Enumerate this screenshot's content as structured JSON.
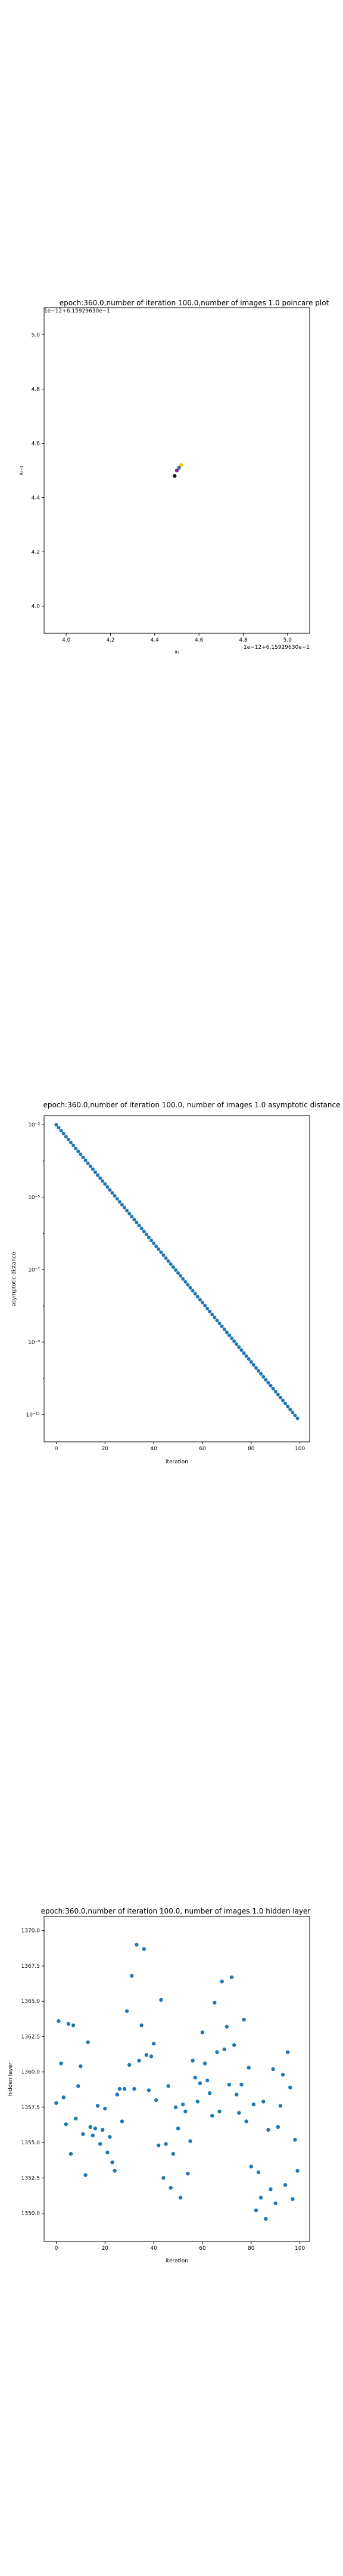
{
  "chart_data": [
    {
      "type": "scatter",
      "title": "epoch:360.0,number of iteration 100.0,number of images 1.0 poincare plot",
      "xlabel": "xₜ",
      "ylabel": "xₜ₊₁",
      "offset_label": "1e−12+6.15929630e−1",
      "offset_label_top": "1e−12+6.15929630e−1",
      "xlim": [
        3.9,
        5.1
      ],
      "ylim": [
        3.9,
        5.1
      ],
      "xticks": [
        "4.0",
        "4.2",
        "4.4",
        "4.6",
        "4.8",
        "5.0"
      ],
      "yticks": [
        "4.0",
        "4.2",
        "4.4",
        "4.6",
        "4.8",
        "5.0"
      ],
      "grid": false,
      "points": [
        {
          "x": 4.49,
          "y": 4.48,
          "color": "#1a1a1a"
        },
        {
          "x": 4.5,
          "y": 4.5,
          "color": "#7b2a8c"
        },
        {
          "x": 4.51,
          "y": 4.51,
          "color": "#2a6fa8"
        },
        {
          "x": 4.52,
          "y": 4.52,
          "color": "#f2c80f"
        }
      ]
    },
    {
      "type": "scatter",
      "title": "epoch:360.0,number of iteration 100.0, number of images 1.0 asymptotic distance",
      "xlabel": "iteration",
      "ylabel": "asymptotic distance",
      "yscale": "log",
      "xlim": [
        -5,
        104
      ],
      "ylim_log10": [
        -11.75,
        -2.75
      ],
      "xticks": [
        "0",
        "20",
        "40",
        "60",
        "80",
        "100"
      ],
      "yticks": [
        "10⁻³",
        "10⁻⁵",
        "10⁻⁷",
        "10⁻⁹",
        "10⁻¹¹"
      ],
      "y_start_log10": -3.0,
      "y_end_log10": -11.1,
      "n_points": 100,
      "color": "#1f77b4",
      "grid": false
    },
    {
      "type": "scatter",
      "title": "epoch:360.0,number of iteration 100.0, number of images 1.0 hidden layer",
      "xlabel": "iteration",
      "ylabel": "hidden layer",
      "xlim": [
        -5,
        104
      ],
      "ylim": [
        1348,
        1371
      ],
      "xticks": [
        "0",
        "20",
        "40",
        "60",
        "80",
        "100"
      ],
      "yticks": [
        "1350.0",
        "1352.5",
        "1355.0",
        "1357.5",
        "1360.0",
        "1362.5",
        "1365.0",
        "1367.5",
        "1370.0"
      ],
      "color": "#1f77b4",
      "grid": false,
      "values": [
        1357.8,
        1363.6,
        1360.6,
        1358.2,
        1356.3,
        1363.4,
        1354.2,
        1363.3,
        1356.7,
        1359.0,
        1360.4,
        1355.6,
        1352.7,
        1362.1,
        1356.1,
        1355.5,
        1356.0,
        1357.6,
        1354.9,
        1355.9,
        1357.4,
        1354.3,
        1355.4,
        1353.6,
        1353.0,
        1358.4,
        1358.8,
        1356.5,
        1358.8,
        1364.3,
        1360.5,
        1366.8,
        1358.8,
        1369.0,
        1360.8,
        1363.3,
        1368.7,
        1361.2,
        1358.7,
        1361.1,
        1362.0,
        1358.0,
        1354.8,
        1365.1,
        1352.5,
        1354.9,
        1359.0,
        1351.8,
        1354.2,
        1357.5,
        1356.0,
        1351.1,
        1357.7,
        1357.2,
        1352.8,
        1355.1,
        1360.8,
        1359.6,
        1357.9,
        1359.2,
        1362.8,
        1360.6,
        1359.4,
        1358.5,
        1356.9,
        1364.9,
        1361.4,
        1357.2,
        1366.4,
        1361.6,
        1363.2,
        1359.1,
        1366.7,
        1361.9,
        1358.4,
        1357.1,
        1359.1,
        1363.7,
        1356.5,
        1360.3,
        1353.3,
        1357.7,
        1350.2,
        1352.9,
        1351.1,
        1357.9,
        1349.6,
        1355.9,
        1351.7,
        1360.2,
        1350.7,
        1356.1,
        1357.6,
        1359.8,
        1352.0,
        1361.4,
        1358.9,
        1351.0,
        1355.2,
        1353.0
      ]
    }
  ]
}
